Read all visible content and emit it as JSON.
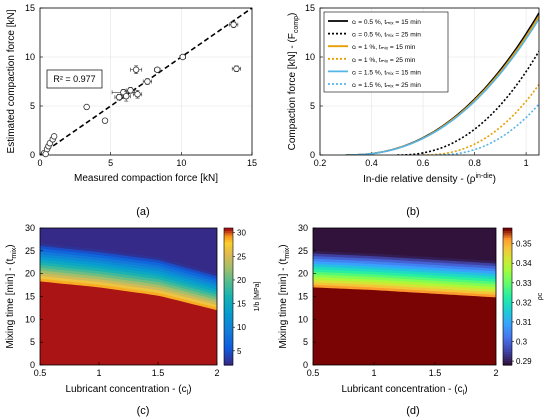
{
  "panel_labels": {
    "a": "(a)",
    "b": "(b)",
    "c": "(c)",
    "d": "(d)"
  },
  "chart_data": [
    {
      "id": "a",
      "type": "scatter",
      "xlabel": "Measured compaction force [kN]",
      "ylabel": "Estimated compaction force [kN]",
      "xlim": [
        0,
        15
      ],
      "ylim": [
        0,
        15
      ],
      "xticks": [
        "0",
        "5",
        "10",
        "15"
      ],
      "yticks": [
        "0",
        "5",
        "10",
        "15"
      ],
      "annotation": "R² = 0.977",
      "grid": true,
      "points": [
        {
          "x": 0.3,
          "y": 0.2,
          "xerr": 0,
          "yerr": 0
        },
        {
          "x": 0.5,
          "y": 0.6,
          "xerr": 0,
          "yerr": 0
        },
        {
          "x": 0.6,
          "y": 0.9,
          "xerr": 0,
          "yerr": 0
        },
        {
          "x": 0.7,
          "y": 1.2,
          "xerr": 0,
          "yerr": 0
        },
        {
          "x": 0.9,
          "y": 1.6,
          "xerr": 0,
          "yerr": 0
        },
        {
          "x": 1.0,
          "y": 1.9,
          "xerr": 0,
          "yerr": 0
        },
        {
          "x": 0.4,
          "y": 0.1,
          "xerr": 0,
          "yerr": 0
        },
        {
          "x": 3.3,
          "y": 4.9,
          "xerr": 0,
          "yerr": 0
        },
        {
          "x": 4.6,
          "y": 3.5,
          "xerr": 0,
          "yerr": 0
        },
        {
          "x": 5.6,
          "y": 5.9,
          "xerr": 0.3,
          "yerr": 0.3
        },
        {
          "x": 5.9,
          "y": 6.4,
          "xerr": 0.8,
          "yerr": 0.3
        },
        {
          "x": 6.1,
          "y": 6.0,
          "xerr": 0.3,
          "yerr": 0.5
        },
        {
          "x": 6.4,
          "y": 6.6,
          "xerr": 0.3,
          "yerr": 0.3
        },
        {
          "x": 6.8,
          "y": 8.7,
          "xerr": 0.4,
          "yerr": 0.4
        },
        {
          "x": 6.9,
          "y": 6.2,
          "xerr": 0.3,
          "yerr": 0.4
        },
        {
          "x": 7.6,
          "y": 7.5,
          "xerr": 0.3,
          "yerr": 0.3
        },
        {
          "x": 8.3,
          "y": 8.7,
          "xerr": 0.2,
          "yerr": 0.2
        },
        {
          "x": 10.1,
          "y": 10.0,
          "xerr": 0.2,
          "yerr": 0.2
        },
        {
          "x": 13.7,
          "y": 13.3,
          "xerr": 0.3,
          "yerr": 0.3
        },
        {
          "x": 13.9,
          "y": 8.8,
          "xerr": 0.3,
          "yerr": 0.3
        }
      ]
    },
    {
      "id": "b",
      "type": "line",
      "xlabel": "In-die relative density - (ρ",
      "xlabel_sup": "in-die",
      "xlabel_end": ")",
      "ylabel": "Compaction force [kN] - (F",
      "ylabel_sub": "comp",
      "ylabel_end": ")",
      "xlim": [
        0.2,
        1.05
      ],
      "ylim": [
        0,
        15
      ],
      "xticks": [
        "0.2",
        "0.4",
        "0.6",
        "0.8",
        "1"
      ],
      "yticks": [
        "0",
        "5",
        "10",
        "15"
      ],
      "grid": true,
      "legend_placement": "top-left",
      "series": [
        {
          "name": "cₗ = 0.5 %, tₘᵢₓ = 15 min",
          "color": "#000000",
          "dash": "solid",
          "rho_min": 0.3,
          "Fmax": 14.5
        },
        {
          "name": "cₗ = 0.5 %, tₘᵢₓ = 25 min",
          "color": "#000000",
          "dash": "dotted",
          "rho_min": 0.5,
          "Fmax": 10.6
        },
        {
          "name": "cₗ = 1 %, tₘᵢₓ = 15 min",
          "color": "#e69f00",
          "dash": "solid",
          "rho_min": 0.3,
          "Fmax": 14.2
        },
        {
          "name": "cₗ = 1 %, tₘᵢₓ = 25 min",
          "color": "#e69f00",
          "dash": "dotted",
          "rho_min": 0.6,
          "Fmax": 7.2
        },
        {
          "name": "cₗ = 1.5 %, tₘᵢₓ = 15 min",
          "color": "#56b4e9",
          "dash": "solid",
          "rho_min": 0.3,
          "Fmax": 13.9
        },
        {
          "name": "cₗ = 1.5 %, tₘᵢₓ = 25 min",
          "color": "#56b4e9",
          "dash": "dotted",
          "rho_min": 0.65,
          "Fmax": 5.2
        }
      ]
    },
    {
      "id": "c",
      "type": "heatmap",
      "xlabel": "Lubricant concentration - (c",
      "xlabel_sub": "l",
      "xlabel_end": ")",
      "ylabel": "Mixing time [min] - (t",
      "ylabel_sub": "mix",
      "ylabel_end": ")",
      "xlim": [
        0.5,
        2
      ],
      "ylim": [
        0,
        30
      ],
      "xticks": [
        "0.5",
        "1",
        "1.5",
        "2"
      ],
      "yticks": [
        "0",
        "5",
        "10",
        "15",
        "20",
        "25",
        "30"
      ],
      "colorbar_label": "1/b [MPa]",
      "colorbar_range": [
        2,
        31
      ],
      "colorbar_ticks": [
        "5",
        "10",
        "15",
        "20",
        "25",
        "30"
      ],
      "band_bottom_min": [
        18.3,
        17.0,
        15.2,
        12.0
      ],
      "band_top_min": [
        26.7,
        25.3,
        23.6,
        20.0
      ]
    },
    {
      "id": "d",
      "type": "heatmap",
      "xlabel": "Lubricant concentration - (c",
      "xlabel_sub": "l",
      "xlabel_end": ")",
      "ylabel": "Mixing time [min] - (t",
      "ylabel_sub": "mix",
      "ylabel_end": ")",
      "xlim": [
        0.5,
        2
      ],
      "ylim": [
        0,
        30
      ],
      "xticks": [
        "0.5",
        "1",
        "1.5",
        "2"
      ],
      "yticks": [
        "0",
        "5",
        "10",
        "15",
        "20",
        "25",
        "30"
      ],
      "colorbar_label": "ρc",
      "colorbar_range": [
        0.288,
        0.358
      ],
      "colorbar_ticks": [
        "0.29",
        "0.3",
        "0.31",
        "0.32",
        "0.33",
        "0.34",
        "0.35"
      ],
      "band_bottom_min": [
        17.0,
        16.4,
        15.6,
        14.8
      ],
      "band_top_min": [
        25.0,
        24.4,
        23.6,
        22.8
      ]
    }
  ]
}
